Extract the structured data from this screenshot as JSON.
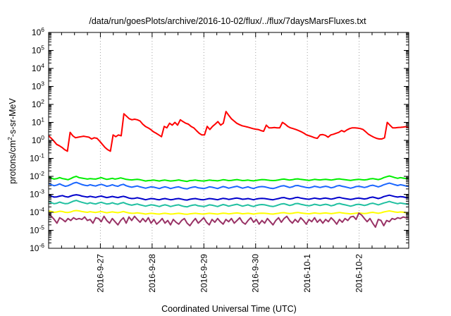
{
  "chart_data": {
    "type": "line",
    "title": "/data/run/goesPlots/archive/2016-10-02/flux/../flux/7daysMarsFluxes.txt",
    "xlabel": "Coordinated Universal Time (UTC)",
    "ylabel_parts": [
      "protons/cm",
      "2",
      "-s-sr-MeV"
    ],
    "yscale": "log",
    "ylim": [
      1e-06,
      1000000.0
    ],
    "y_ticks": [
      {
        "base": "10",
        "exp": "-6"
      },
      {
        "base": "10",
        "exp": "-5"
      },
      {
        "base": "10",
        "exp": "-4"
      },
      {
        "base": "10",
        "exp": "-3"
      },
      {
        "base": "10",
        "exp": "-2"
      },
      {
        "base": "10",
        "exp": "-1"
      },
      {
        "base": "10",
        "exp": "0"
      },
      {
        "base": "10",
        "exp": "1"
      },
      {
        "base": "10",
        "exp": "2"
      },
      {
        "base": "10",
        "exp": "3"
      },
      {
        "base": "10",
        "exp": "4"
      },
      {
        "base": "10",
        "exp": "5"
      },
      {
        "base": "10",
        "exp": "6"
      }
    ],
    "x_ticks": [
      "2016-9-27",
      "2016-9-28",
      "2016-9-29",
      "2016-9-30",
      "2016-10-1",
      "2016-10-2"
    ],
    "xlim": [
      "2016-09-26 00:00",
      "2016-10-02 23:00"
    ],
    "grid": true,
    "series": [
      {
        "color": "#ff0000",
        "values": [
          1.8,
          1.3,
          0.9,
          0.6,
          0.5,
          0.4,
          0.3,
          0.25,
          2.8,
          1.8,
          1.4,
          1.5,
          1.6,
          1.7,
          1.6,
          1.5,
          1.2,
          1.4,
          1.3,
          0.9,
          0.6,
          0.4,
          0.3,
          0.25,
          2.0,
          1.6,
          2.0,
          1.8,
          30,
          22,
          16,
          14,
          15,
          14,
          12,
          8,
          6,
          5,
          4,
          3,
          2.5,
          2,
          1.6,
          6,
          5,
          9,
          7,
          10,
          7,
          14,
          11,
          9,
          8,
          6,
          5,
          3.5,
          2.5,
          2,
          2,
          6,
          4,
          6,
          8,
          11,
          7,
          9,
          40,
          25,
          16,
          12,
          9,
          7.5,
          6.5,
          6,
          5.5,
          5,
          4.5,
          4.2,
          4,
          3.5,
          3.2,
          7,
          5,
          5,
          5.2,
          5,
          5,
          10,
          8,
          6,
          5,
          4.5,
          4,
          3.5,
          3,
          2.5,
          2,
          1.8,
          1.6,
          1.4,
          1.3,
          2,
          2.1,
          1.9,
          1.5,
          2,
          2.2,
          2.5,
          2.8,
          3.5,
          3,
          3.8,
          4.5,
          5,
          5,
          4.8,
          4.5,
          4,
          3,
          2.2,
          1.8,
          1.5,
          1.3,
          1.2,
          1.2,
          1.4,
          10,
          7,
          5,
          5,
          5.2,
          5.3,
          5.5,
          5.8,
          5
        ]
      },
      {
        "color": "#00ee00",
        "values": [
          0.0095,
          0.008,
          0.007,
          0.0075,
          0.0085,
          0.0075,
          0.007,
          0.0065,
          0.0075,
          0.009,
          0.01,
          0.0085,
          0.008,
          0.0075,
          0.007,
          0.0075,
          0.0072,
          0.007,
          0.0078,
          0.0085,
          0.0075,
          0.0068,
          0.0072,
          0.0078,
          0.007,
          0.0075,
          0.0082,
          0.0075,
          0.0068,
          0.0065,
          0.0063,
          0.0066,
          0.0068,
          0.0065,
          0.006,
          0.0055,
          0.0058,
          0.006,
          0.0062,
          0.0058,
          0.0055,
          0.006,
          0.0062,
          0.0058,
          0.0055,
          0.0057,
          0.006,
          0.0063,
          0.0058,
          0.0055,
          0.0052,
          0.0058,
          0.006,
          0.0062,
          0.0058,
          0.0056,
          0.0055,
          0.0058,
          0.0062,
          0.006,
          0.0058,
          0.0056,
          0.006,
          0.0065,
          0.0062,
          0.0058,
          0.006,
          0.0063,
          0.0066,
          0.0062,
          0.0058,
          0.006,
          0.0062,
          0.0058,
          0.0056,
          0.006,
          0.0063,
          0.0066,
          0.0065,
          0.0062,
          0.006,
          0.0058,
          0.006,
          0.0063,
          0.0068,
          0.007,
          0.0066,
          0.0062,
          0.0065,
          0.007,
          0.0072,
          0.0068,
          0.0065,
          0.0062,
          0.006,
          0.0063,
          0.0068,
          0.0065,
          0.0063,
          0.0066,
          0.0068,
          0.0065,
          0.0062,
          0.0066,
          0.007,
          0.0072,
          0.0068,
          0.0065,
          0.0062,
          0.006,
          0.0063,
          0.0066,
          0.0068,
          0.0065,
          0.0063,
          0.0066,
          0.0072,
          0.0075,
          0.007,
          0.0066,
          0.0072,
          0.0085,
          0.0095,
          0.0105,
          0.0095,
          0.0085,
          0.0078,
          0.0085,
          0.008,
          0.0075,
          0.0075
        ]
      },
      {
        "color": "#1a66ff",
        "values": [
          0.004,
          0.0034,
          0.003,
          0.0033,
          0.0038,
          0.0032,
          0.0028,
          0.003,
          0.0035,
          0.0042,
          0.0046,
          0.004,
          0.0035,
          0.0032,
          0.003,
          0.0034,
          0.0031,
          0.0029,
          0.0033,
          0.0036,
          0.0032,
          0.0028,
          0.003,
          0.0034,
          0.003,
          0.0028,
          0.0033,
          0.0036,
          0.003,
          0.0027,
          0.0025,
          0.0027,
          0.0029,
          0.0026,
          0.0024,
          0.0022,
          0.0024,
          0.0026,
          0.0025,
          0.0023,
          0.0021,
          0.0024,
          0.0026,
          0.0024,
          0.0021,
          0.0023,
          0.0025,
          0.0026,
          0.0023,
          0.0021,
          0.002,
          0.0023,
          0.0025,
          0.0026,
          0.0023,
          0.0022,
          0.0021,
          0.0023,
          0.0026,
          0.0025,
          0.0023,
          0.0021,
          0.0024,
          0.0027,
          0.0025,
          0.0022,
          0.0024,
          0.0026,
          0.0028,
          0.0025,
          0.0022,
          0.0024,
          0.0026,
          0.0023,
          0.0021,
          0.0024,
          0.0026,
          0.0027,
          0.0026,
          0.0024,
          0.0022,
          0.0021,
          0.0023,
          0.0026,
          0.0029,
          0.003,
          0.0027,
          0.0024,
          0.0026,
          0.003,
          0.0031,
          0.0028,
          0.0026,
          0.0024,
          0.0023,
          0.0025,
          0.0028,
          0.0026,
          0.0024,
          0.0026,
          0.0028,
          0.0026,
          0.0023,
          0.0025,
          0.0029,
          0.0031,
          0.0028,
          0.0026,
          0.0024,
          0.0022,
          0.0024,
          0.0027,
          0.0028,
          0.0026,
          0.0024,
          0.0026,
          0.003,
          0.0032,
          0.0029,
          0.0026,
          0.0029,
          0.0034,
          0.0038,
          0.0042,
          0.0038,
          0.0034,
          0.0031,
          0.0034,
          0.0032,
          0.0029,
          0.0028
        ]
      },
      {
        "color": "#0000cc",
        "values": [
          0.0009,
          0.0008,
          0.0007,
          0.00072,
          0.0008,
          0.00085,
          0.00075,
          0.0007,
          0.0008,
          0.0009,
          0.00095,
          0.0009,
          0.0008,
          0.00075,
          0.0007,
          0.00078,
          0.00072,
          0.00068,
          0.00075,
          0.0008,
          0.00072,
          0.00066,
          0.0007,
          0.00076,
          0.0007,
          0.00066,
          0.00072,
          0.00078,
          0.0007,
          0.00062,
          0.00058,
          0.0006,
          0.00064,
          0.0006,
          0.00055,
          0.0005,
          0.00054,
          0.00058,
          0.00056,
          0.00052,
          0.0005,
          0.00055,
          0.00058,
          0.00054,
          0.0005,
          0.00052,
          0.00056,
          0.00058,
          0.00054,
          0.0005,
          0.00048,
          0.00053,
          0.00056,
          0.00058,
          0.00054,
          0.00051,
          0.0005,
          0.00054,
          0.00058,
          0.00056,
          0.00053,
          0.0005,
          0.00055,
          0.0006,
          0.00057,
          0.00052,
          0.00055,
          0.00059,
          0.00062,
          0.00058,
          0.00053,
          0.00055,
          0.00058,
          0.00054,
          0.0005,
          0.00055,
          0.00058,
          0.0006,
          0.00058,
          0.00055,
          0.00052,
          0.0005,
          0.00054,
          0.00058,
          0.00064,
          0.00066,
          0.0006,
          0.00055,
          0.00058,
          0.00065,
          0.00068,
          0.00062,
          0.00058,
          0.00055,
          0.00053,
          0.00057,
          0.00062,
          0.00058,
          0.00055,
          0.00059,
          0.00062,
          0.00058,
          0.00054,
          0.00058,
          0.00064,
          0.00068,
          0.00062,
          0.00058,
          0.00055,
          0.00052,
          0.00055,
          0.0006,
          0.00062,
          0.00058,
          0.00055,
          0.00058,
          0.00066,
          0.0007,
          0.00064,
          0.00058,
          0.00064,
          0.00075,
          0.00082,
          0.0009,
          0.00082,
          0.00075,
          0.0007,
          0.00075,
          0.00072,
          0.00066,
          0.00065
        ]
      },
      {
        "color": "#20c0a0",
        "values": [
          0.0004,
          0.00034,
          0.0003,
          0.00032,
          0.00037,
          0.00033,
          0.0003,
          0.00031,
          0.00036,
          0.00042,
          0.00046,
          0.0004,
          0.00036,
          0.00033,
          0.0003,
          0.00034,
          0.00031,
          0.00029,
          0.00033,
          0.00036,
          0.00032,
          0.00029,
          0.0003,
          0.00034,
          0.0003,
          0.00028,
          0.00032,
          0.00035,
          0.0003,
          0.00027,
          0.00025,
          0.00027,
          0.00029,
          0.00026,
          0.00024,
          0.00022,
          0.00024,
          0.00026,
          0.00025,
          0.00023,
          0.00021,
          0.00024,
          0.00026,
          0.00024,
          0.00021,
          0.00023,
          0.00025,
          0.00026,
          0.00023,
          0.00021,
          0.0002,
          0.00023,
          0.00025,
          0.00026,
          0.00023,
          0.00022,
          0.00021,
          0.00023,
          0.00026,
          0.00025,
          0.00023,
          0.00021,
          0.00024,
          0.00027,
          0.00025,
          0.00022,
          0.00024,
          0.00026,
          0.00028,
          0.00025,
          0.00022,
          0.00024,
          0.00026,
          0.00023,
          0.00021,
          0.00024,
          0.00026,
          0.00027,
          0.00026,
          0.00024,
          0.00022,
          0.00021,
          0.00023,
          0.00026,
          0.00029,
          0.0003,
          0.00027,
          0.00024,
          0.00026,
          0.0003,
          0.00031,
          0.00028,
          0.00026,
          0.00024,
          0.00023,
          0.00025,
          0.00028,
          0.00026,
          0.00024,
          0.00026,
          0.00028,
          0.00026,
          0.00023,
          0.00025,
          0.00029,
          0.00031,
          0.00028,
          0.00026,
          0.00024,
          0.00022,
          0.00024,
          0.00027,
          0.00028,
          0.00026,
          0.00024,
          0.00026,
          0.0003,
          0.00032,
          0.00029,
          0.00026,
          0.00029,
          0.00033,
          0.00036,
          0.0004,
          0.00036,
          0.00033,
          0.0003,
          0.00033,
          0.00031,
          0.00029,
          0.00028
        ]
      },
      {
        "color": "#ffff00",
        "values": [
          0.00012,
          0.00011,
          0.0001,
          0.000105,
          0.000115,
          0.00011,
          0.0001,
          9.8e-05,
          0.000105,
          0.00012,
          0.000125,
          0.00012,
          0.00011,
          0.000105,
          0.0001,
          0.000108,
          0.000102,
          9.8e-05,
          0.000105,
          0.00011,
          0.000102,
          9.5e-05,
          0.0001,
          0.000106,
          0.0001,
          9.6e-05,
          0.000102,
          0.00011,
          0.0001,
          9.2e-05,
          8.8e-05,
          9e-05,
          9.4e-05,
          9e-05,
          8.5e-05,
          8e-05,
          8.4e-05,
          8.8e-05,
          8.6e-05,
          8.2e-05,
          8e-05,
          8.5e-05,
          8.8e-05,
          8.4e-05,
          8e-05,
          8.2e-05,
          8.6e-05,
          8.8e-05,
          8.4e-05,
          8e-05,
          7.8e-05,
          8.3e-05,
          8.6e-05,
          8.8e-05,
          8.4e-05,
          8.1e-05,
          8e-05,
          8.4e-05,
          8.8e-05,
          8.6e-05,
          8.3e-05,
          8e-05,
          8.5e-05,
          9e-05,
          8.7e-05,
          8.2e-05,
          8.5e-05,
          8.9e-05,
          9.2e-05,
          8.8e-05,
          8.3e-05,
          8.5e-05,
          8.8e-05,
          8.4e-05,
          8e-05,
          8.5e-05,
          8.8e-05,
          9e-05,
          8.8e-05,
          8.5e-05,
          8.2e-05,
          8e-05,
          8.4e-05,
          8.8e-05,
          9.4e-05,
          9.6e-05,
          9e-05,
          8.5e-05,
          8.8e-05,
          9.5e-05,
          9.8e-05,
          9.2e-05,
          8.8e-05,
          8.5e-05,
          8.3e-05,
          8.7e-05,
          9.2e-05,
          8.8e-05,
          8.5e-05,
          8.9e-05,
          9.2e-05,
          8.8e-05,
          8.4e-05,
          8.8e-05,
          9.4e-05,
          9.8e-05,
          9.2e-05,
          8.8e-05,
          8.5e-05,
          8.2e-05,
          8.5e-05,
          9e-05,
          9.2e-05,
          8.8e-05,
          8.5e-05,
          8.8e-05,
          9.6e-05,
          0.0001,
          9.4e-05,
          8.8e-05,
          9.4e-05,
          0.000105,
          0.000112,
          0.00012,
          0.000112,
          0.000105,
          0.0001,
          0.000105,
          0.000102,
          9.6e-05,
          9.5e-05
        ]
      },
      {
        "color": "#993366",
        "values": [
          8e-05,
          6e-05,
          4e-05,
          2.5e-05,
          5e-05,
          4e-05,
          3e-05,
          4.5e-05,
          3.5e-05,
          5e-05,
          4e-05,
          4.5e-05,
          4e-05,
          5.5e-05,
          3.5e-05,
          4e-05,
          2.5e-05,
          5e-05,
          4.5e-05,
          3e-05,
          6e-05,
          3.5e-05,
          2.5e-05,
          4.5e-05,
          3e-05,
          2e-05,
          3.5e-05,
          5e-05,
          2.5e-05,
          5.5e-05,
          3.5e-05,
          6e-05,
          4e-05,
          2.8e-05,
          4.5e-05,
          3e-05,
          5e-05,
          2.5e-05,
          4e-05,
          2.2e-05,
          3e-05,
          4.5e-05,
          2.5e-05,
          3.5e-05,
          2e-05,
          4e-05,
          2.8e-05,
          2.2e-05,
          3.5e-05,
          4.5e-05,
          2.5e-05,
          1.8e-05,
          3e-05,
          4.5e-05,
          2.5e-05,
          3.5e-05,
          5e-05,
          2.8e-05,
          2e-05,
          4e-05,
          2.8e-05,
          4.5e-05,
          3e-05,
          2.2e-05,
          4e-05,
          3e-05,
          4.5e-05,
          2.5e-05,
          3.5e-05,
          5e-05,
          2.8e-05,
          2.2e-05,
          3.5e-05,
          5e-05,
          2.8e-05,
          4e-05,
          2.2e-05,
          3.5e-05,
          2.5e-05,
          4.5e-05,
          3e-05,
          2e-05,
          3.5e-05,
          5e-05,
          2.8e-05,
          4.5e-05,
          6e-05,
          3.5e-05,
          2.5e-05,
          4e-05,
          2.8e-05,
          5e-05,
          3.5e-05,
          2.2e-05,
          4e-05,
          3e-05,
          5e-05,
          2.8e-05,
          4e-05,
          2.5e-05,
          4e-05,
          3e-05,
          5e-05,
          3.5e-05,
          2.2e-05,
          4e-05,
          2.8e-05,
          4.5e-05,
          3.5e-05,
          5.5e-05,
          6e-05,
          4e-05,
          9e-05,
          7e-05,
          4.5e-05,
          3e-05,
          4.5e-05,
          2.5e-05,
          1.5e-05,
          4e-05,
          3.5e-05,
          1.8e-05,
          3.5e-05,
          3e-05,
          4.5e-05,
          4e-05,
          5e-05,
          4.5e-05,
          5.5e-05,
          5e-05,
          5e-05
        ]
      }
    ]
  }
}
